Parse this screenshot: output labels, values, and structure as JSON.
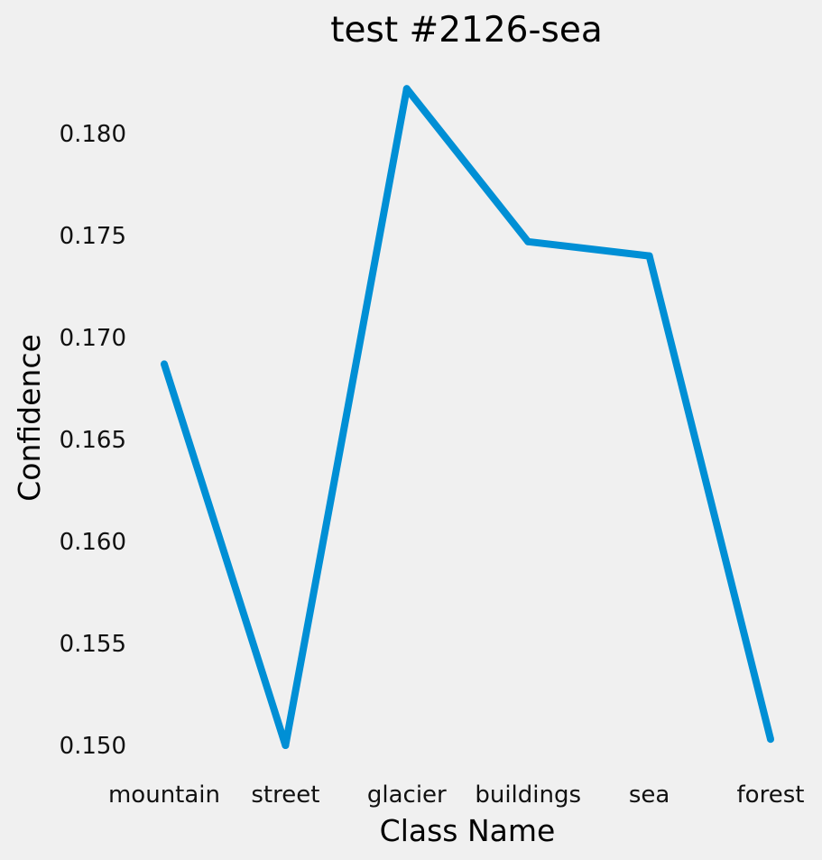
{
  "chart_data": {
    "type": "line",
    "title": "test #2126-sea",
    "xlabel": "Class Name",
    "ylabel": "Confidence",
    "categories": [
      "mountain",
      "street",
      "glacier",
      "buildings",
      "sea",
      "forest"
    ],
    "series": [
      {
        "values": [
          0.1687,
          0.15,
          0.1822,
          0.1747,
          0.174,
          0.1503
        ],
        "color": "#008fd5"
      }
    ],
    "yticks": [
      0.15,
      0.155,
      0.16,
      0.165,
      0.17,
      0.175,
      0.18
    ],
    "ytick_labels": [
      "0.150",
      "0.155",
      "0.160",
      "0.165",
      "0.170",
      "0.175",
      "0.180"
    ],
    "ylim": [
      0.15,
      0.18
    ],
    "grid": false,
    "background": "#f0f0f0"
  }
}
